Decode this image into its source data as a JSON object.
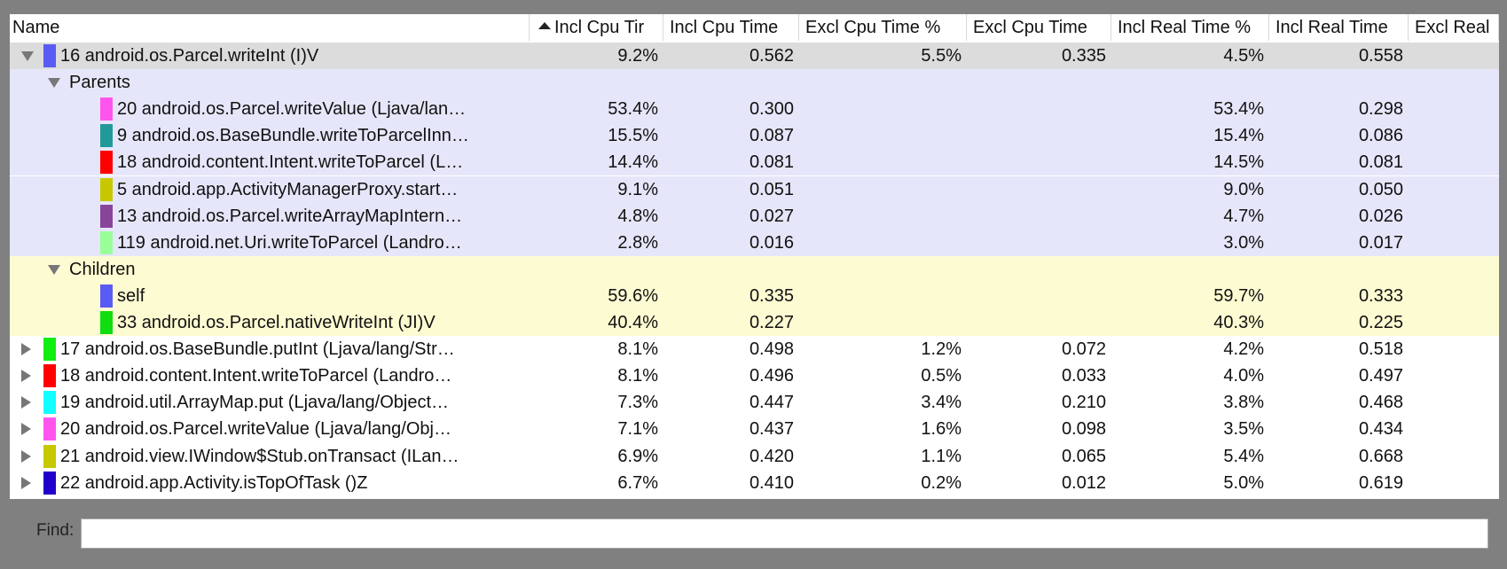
{
  "header": {
    "columns": [
      "Name",
      "Incl Cpu Tir",
      "Incl Cpu Time",
      "Excl Cpu Time %",
      "Excl Cpu Time",
      "Incl Real Time %",
      "Incl Real Time",
      "Excl Real"
    ]
  },
  "selected": {
    "name": "16 android.os.Parcel.writeInt (I)V",
    "color": "#5a5af5",
    "cells": [
      "9.2%",
      "0.562",
      "5.5%",
      "0.335",
      "4.5%",
      "0.558"
    ]
  },
  "parents": {
    "label": "Parents",
    "rows": [
      {
        "name": "20 android.os.Parcel.writeValue (Ljava/lan…",
        "color": "#ff55ee",
        "cells": [
          "53.4%",
          "0.300",
          null,
          null,
          "53.4%",
          "0.298"
        ]
      },
      {
        "name": "9 android.os.BaseBundle.writeToParcelInn…",
        "color": "#229999",
        "cells": [
          "15.5%",
          "0.087",
          null,
          null,
          "15.4%",
          "0.086"
        ]
      },
      {
        "name": "18 android.content.Intent.writeToParcel (L…",
        "color": "#ff0000",
        "cells": [
          "14.4%",
          "0.081",
          null,
          null,
          "14.5%",
          "0.081"
        ]
      },
      {
        "name": "5 android.app.ActivityManagerProxy.start…",
        "color": "#c8c800",
        "cells": [
          "9.1%",
          "0.051",
          null,
          null,
          "9.0%",
          "0.050"
        ]
      },
      {
        "name": "13 android.os.Parcel.writeArrayMapIntern…",
        "color": "#884499",
        "cells": [
          "4.8%",
          "0.027",
          null,
          null,
          "4.7%",
          "0.026"
        ]
      },
      {
        "name": "119 android.net.Uri.writeToParcel (Landro…",
        "color": "#99ff99",
        "cells": [
          "2.8%",
          "0.016",
          null,
          null,
          "3.0%",
          "0.017"
        ]
      }
    ]
  },
  "children": {
    "label": "Children",
    "rows": [
      {
        "name": "self",
        "color": "#5a5af5",
        "cells": [
          "59.6%",
          "0.335",
          null,
          null,
          "59.7%",
          "0.333"
        ]
      },
      {
        "name": "33 android.os.Parcel.nativeWriteInt (JI)V",
        "color": "#11dd11",
        "cells": [
          "40.4%",
          "0.227",
          null,
          null,
          "40.3%",
          "0.225"
        ]
      }
    ]
  },
  "others": [
    {
      "name": "17 android.os.BaseBundle.putInt (Ljava/lang/Str…",
      "color": "#11ee11",
      "cells": [
        "8.1%",
        "0.498",
        "1.2%",
        "0.072",
        "4.2%",
        "0.518"
      ]
    },
    {
      "name": "18 android.content.Intent.writeToParcel (Landro…",
      "color": "#ff0000",
      "cells": [
        "8.1%",
        "0.496",
        "0.5%",
        "0.033",
        "4.0%",
        "0.497"
      ]
    },
    {
      "name": "19 android.util.ArrayMap.put (Ljava/lang/Object…",
      "color": "#11ffff",
      "cells": [
        "7.3%",
        "0.447",
        "3.4%",
        "0.210",
        "3.8%",
        "0.468"
      ]
    },
    {
      "name": "20 android.os.Parcel.writeValue (Ljava/lang/Obj…",
      "color": "#ff55ee",
      "cells": [
        "7.1%",
        "0.437",
        "1.6%",
        "0.098",
        "3.5%",
        "0.434"
      ]
    },
    {
      "name": "21 android.view.IWindow$Stub.onTransact (ILan…",
      "color": "#c8c800",
      "cells": [
        "6.9%",
        "0.420",
        "1.1%",
        "0.065",
        "5.4%",
        "0.668"
      ]
    },
    {
      "name": "22 android.app.Activity.isTopOfTask ()Z",
      "color": "#2200cc",
      "cells": [
        "6.7%",
        "0.410",
        "0.2%",
        "0.012",
        "5.0%",
        "0.619"
      ]
    }
  ],
  "find": {
    "label": "Find:"
  }
}
